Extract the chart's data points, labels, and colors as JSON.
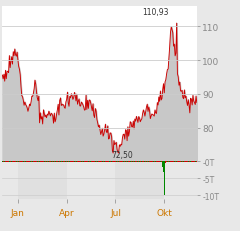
{
  "price_max_label": "110,93",
  "price_min_label": "72,50",
  "y_ticks": [
    80,
    90,
    100,
    110
  ],
  "x_labels": [
    "Jan",
    "Apr",
    "Jul",
    "Okt"
  ],
  "line_color": "#cc0000",
  "fill_color": "#c8c8c8",
  "outer_bg": "#e8e8e8",
  "chart_bg": "#ffffff",
  "volume_color_green": "#008800",
  "volume_color_red": "#cc0000",
  "ylim": [
    70,
    116
  ],
  "xlim_n": 252,
  "jan_idx": 20,
  "apr_idx": 83,
  "jul_idx": 146,
  "okt_idx": 209,
  "volume_ylim": [
    0,
    11
  ],
  "volume_ticks": [
    0,
    5,
    10
  ],
  "volume_tick_labels": [
    "-0T",
    "-5T",
    "-10T"
  ],
  "x_label_color": "#cc7700",
  "tick_color": "#888888",
  "label_color": "#333333",
  "grid_color": "#cccccc",
  "waypoints_t": [
    0,
    0.03,
    0.07,
    0.1,
    0.13,
    0.17,
    0.2,
    0.23,
    0.27,
    0.3,
    0.33,
    0.36,
    0.4,
    0.43,
    0.46,
    0.5,
    0.53,
    0.56,
    0.59,
    0.62,
    0.65,
    0.68,
    0.72,
    0.75,
    0.78,
    0.81,
    0.84,
    0.87,
    0.9,
    0.93,
    0.96,
    1.0
  ],
  "waypoints_v": [
    95,
    97,
    103,
    92,
    85,
    93,
    82,
    84,
    83,
    87,
    88,
    90,
    88,
    86,
    87,
    80,
    79,
    77,
    73.5,
    77,
    80,
    82,
    84,
    86,
    84,
    89,
    92,
    111,
    97,
    88,
    88,
    88
  ]
}
